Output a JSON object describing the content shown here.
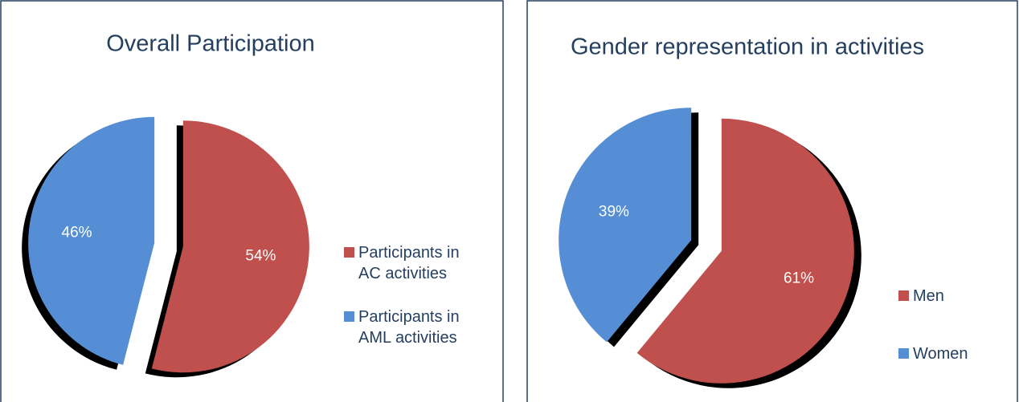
{
  "chart_data": [
    {
      "type": "pie",
      "title": "Overall Participation",
      "categories": [
        "Participants in AC activities",
        "Participants in AML activities"
      ],
      "values": [
        54,
        46
      ],
      "value_labels": [
        "54%",
        "46%"
      ],
      "colors": [
        "#c0504d",
        "#558ed5"
      ],
      "legend": "right"
    },
    {
      "type": "pie",
      "title": "Gender representation in activities",
      "categories": [
        "Men",
        "Women"
      ],
      "values": [
        61,
        39
      ],
      "value_labels": [
        "61%",
        "39%"
      ],
      "colors": [
        "#c0504d",
        "#558ed5"
      ],
      "legend": "right"
    }
  ]
}
